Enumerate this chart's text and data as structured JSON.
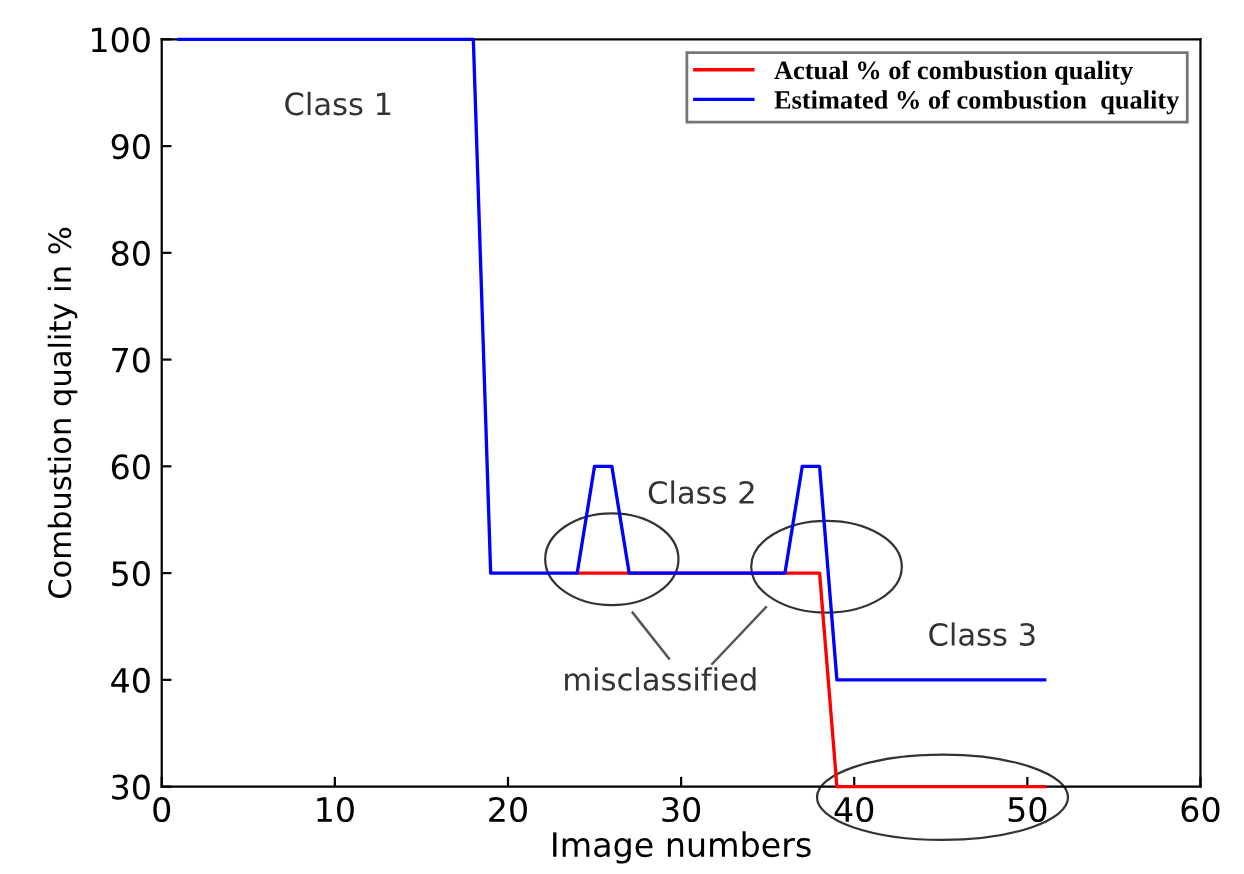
{
  "chart_data": {
    "type": "line",
    "xlabel": "Image numbers",
    "ylabel": "Combustion quality in %",
    "series": [
      {
        "name": "Actual % of combustion quality",
        "color": "#ff0000",
        "x": [
          24,
          38,
          39,
          51
        ],
        "values": [
          50,
          50,
          30,
          30
        ]
      },
      {
        "name": "Estimated % of combustion  quality",
        "color": "#0000ff",
        "x": [
          1,
          18,
          19,
          24,
          25,
          26,
          27,
          36,
          37,
          38,
          39,
          51
        ],
        "values": [
          100,
          100,
          50,
          50,
          60,
          60,
          50,
          50,
          60,
          60,
          40,
          40
        ]
      }
    ],
    "annotations": [
      "Class 1",
      "Class 2",
      "Class 3",
      "misclassified"
    ],
    "xlim": [
      0,
      60
    ],
    "ylim": [
      30,
      100
    ],
    "xticks": [
      0,
      10,
      20,
      30,
      40,
      50,
      60
    ],
    "yticks": [
      30,
      40,
      50,
      60,
      70,
      80,
      90,
      100
    ],
    "legend": "top right",
    "grid": false,
    "marker": "none",
    "line_style": "solid"
  }
}
